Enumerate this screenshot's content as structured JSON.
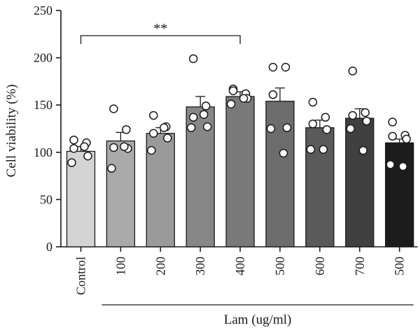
{
  "chart_data": {
    "type": "bar",
    "title": "",
    "ylabel": "Cell viability (%)",
    "xlabel": "",
    "ylim": [
      0,
      250
    ],
    "yticks": [
      0,
      50,
      100,
      150,
      200,
      250
    ],
    "categories": [
      "Control",
      "100",
      "200",
      "300",
      "400",
      "500",
      "600",
      "700",
      "500"
    ],
    "values": [
      101,
      112,
      120,
      148,
      159,
      154,
      126,
      136,
      110
    ],
    "errors": [
      5,
      9,
      6,
      11,
      5,
      14,
      8,
      10,
      4
    ],
    "points": [
      [
        113,
        110,
        104,
        96,
        89,
        106
      ],
      [
        146,
        124,
        105,
        104,
        83,
        106
      ],
      [
        139,
        127,
        120,
        115,
        102,
        126
      ],
      [
        199,
        149,
        137,
        127,
        126,
        140
      ],
      [
        167,
        162,
        165,
        157,
        151,
        157
      ],
      [
        190,
        190,
        161,
        126,
        125,
        99
      ],
      [
        153,
        137,
        130,
        124,
        103,
        103
      ],
      [
        186,
        142,
        139,
        133,
        125,
        102
      ],
      [
        132,
        118,
        117,
        114,
        87,
        85
      ]
    ],
    "bar_colors": [
      "#d4d4d4",
      "#aaaaaa",
      "#9a9a9a",
      "#878787",
      "#797979",
      "#6c6c6c",
      "#5a5a5a",
      "#404040",
      "#1c1c1c"
    ],
    "significance": {
      "from": 0,
      "to": 4,
      "label": "**"
    },
    "group_label": "Lam (ug/ml)",
    "group_from": 1,
    "group_to": 8,
    "grid": false
  }
}
